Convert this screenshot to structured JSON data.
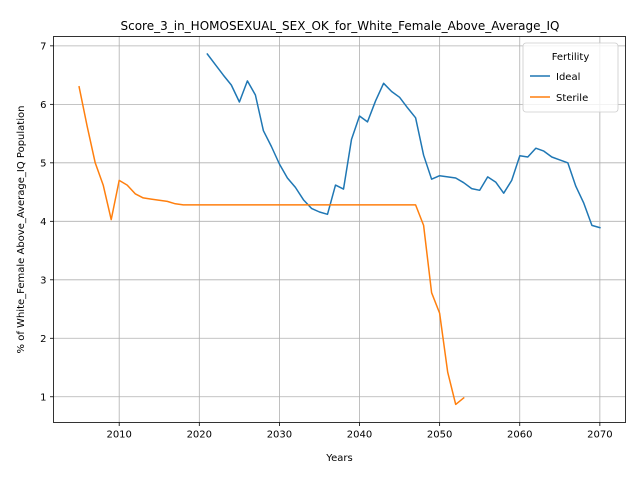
{
  "chart_data": {
    "type": "line",
    "title": "Score_3_in_HOMOSEXUAL_SEX_OK_for_White_Female_Above_Average_IQ",
    "xlabel": "Years",
    "ylabel": "% of White_Female Above_Average_IQ Population",
    "xlim": [
      2001.8,
      2073.2
    ],
    "ylim": [
      0.56,
      7.16
    ],
    "xticks": [
      2010,
      2020,
      2030,
      2040,
      2050,
      2060,
      2070
    ],
    "yticks": [
      1,
      2,
      3,
      4,
      5,
      6,
      7
    ],
    "grid": true,
    "legend": {
      "title": "Fertility",
      "position": "top-right"
    },
    "series": [
      {
        "name": "Ideal",
        "color": "#1f77b4",
        "x": [
          2021,
          2022,
          2023,
          2024,
          2025,
          2026,
          2027,
          2028,
          2029,
          2030,
          2031,
          2032,
          2033,
          2034,
          2035,
          2036,
          2037,
          2038,
          2039,
          2040,
          2041,
          2042,
          2043,
          2044,
          2045,
          2046,
          2047,
          2048,
          2049,
          2050,
          2051,
          2052,
          2053,
          2054,
          2055,
          2056,
          2057,
          2058,
          2059,
          2060,
          2061,
          2062,
          2063,
          2064,
          2065,
          2066,
          2067,
          2068,
          2069,
          2070
        ],
        "y": [
          6.86,
          6.68,
          6.5,
          6.33,
          6.04,
          6.4,
          6.16,
          5.55,
          5.28,
          4.98,
          4.74,
          4.58,
          4.37,
          4.22,
          4.16,
          4.12,
          4.62,
          4.55,
          5.4,
          5.8,
          5.7,
          6.06,
          6.36,
          6.22,
          6.12,
          5.94,
          5.77,
          5.13,
          4.72,
          4.78,
          4.76,
          4.74,
          4.66,
          4.56,
          4.53,
          4.76,
          4.67,
          4.48,
          4.7,
          5.12,
          5.1,
          5.25,
          5.2,
          5.1,
          5.05,
          5.0,
          4.6,
          4.31,
          3.93,
          3.89
        ]
      },
      {
        "name": "Sterile",
        "color": "#ff7f0e",
        "x": [
          2005,
          2006,
          2007,
          2008,
          2009,
          2010,
          2011,
          2012,
          2013,
          2014,
          2015,
          2016,
          2017,
          2018,
          2019,
          2020,
          2021,
          2022,
          2023,
          2024,
          2025,
          2026,
          2027,
          2028,
          2029,
          2030,
          2031,
          2032,
          2033,
          2034,
          2035,
          2036,
          2037,
          2038,
          2039,
          2040,
          2041,
          2042,
          2043,
          2044,
          2045,
          2046,
          2047,
          2048,
          2049,
          2050,
          2051,
          2052,
          2053
        ],
        "y": [
          6.3,
          5.63,
          5.0,
          4.62,
          4.03,
          4.7,
          4.62,
          4.47,
          4.4,
          4.38,
          4.36,
          4.34,
          4.3,
          4.28,
          4.28,
          4.28,
          4.28,
          4.28,
          4.28,
          4.28,
          4.28,
          4.28,
          4.28,
          4.28,
          4.28,
          4.28,
          4.28,
          4.28,
          4.28,
          4.28,
          4.28,
          4.28,
          4.28,
          4.28,
          4.28,
          4.28,
          4.28,
          4.28,
          4.28,
          4.28,
          4.28,
          4.28,
          4.28,
          3.93,
          2.78,
          2.43,
          1.42,
          0.87,
          0.98
        ]
      }
    ]
  }
}
